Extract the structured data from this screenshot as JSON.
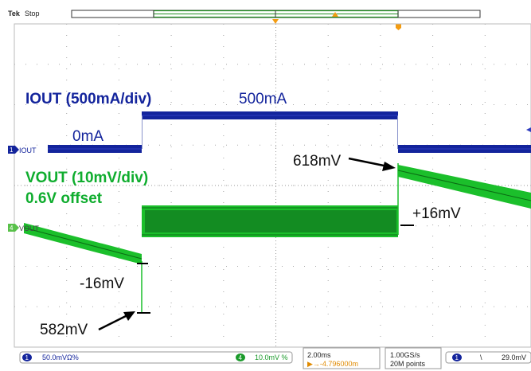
{
  "brand": {
    "prefix": "Tek",
    "state": "Stop"
  },
  "channels": {
    "iout": {
      "tag": "IOUT",
      "title": "IOUT (500mA/div)",
      "low_label": "0mA",
      "high_label": "500mA",
      "color": "#13249c"
    },
    "vout": {
      "tag": "VOUT",
      "title_line1": "VOUT (10mV/div)",
      "title_line2": "0.6V offset",
      "color": "#0fad2e",
      "trace_color": "#1bbf2b",
      "trace_dark": "#0b6c14"
    }
  },
  "annotations": {
    "peak_value": "618mV",
    "dip_value": "582mV",
    "minus_delta": "-16mV",
    "plus_delta": "+16mV"
  },
  "status_bar": {
    "ch1_num": "1",
    "ch1_scale": "50.0mVΩ%",
    "ch4_num": "4",
    "ch4_scale": "10.0mV %",
    "timebase": "2.00ms",
    "trigger_pos": "▶→-4.796000m",
    "sample_rate": "1.00GS/s",
    "record": "20M points",
    "trig_ch": "1",
    "trig_slope": "\\",
    "trig_level": "29.0mV"
  },
  "icons": {
    "trigger_marker": "trigger-position-icon",
    "ch1_marker": "ch1-ground-arrow-icon",
    "ch4_marker": "ch4-ground-arrow-icon"
  }
}
